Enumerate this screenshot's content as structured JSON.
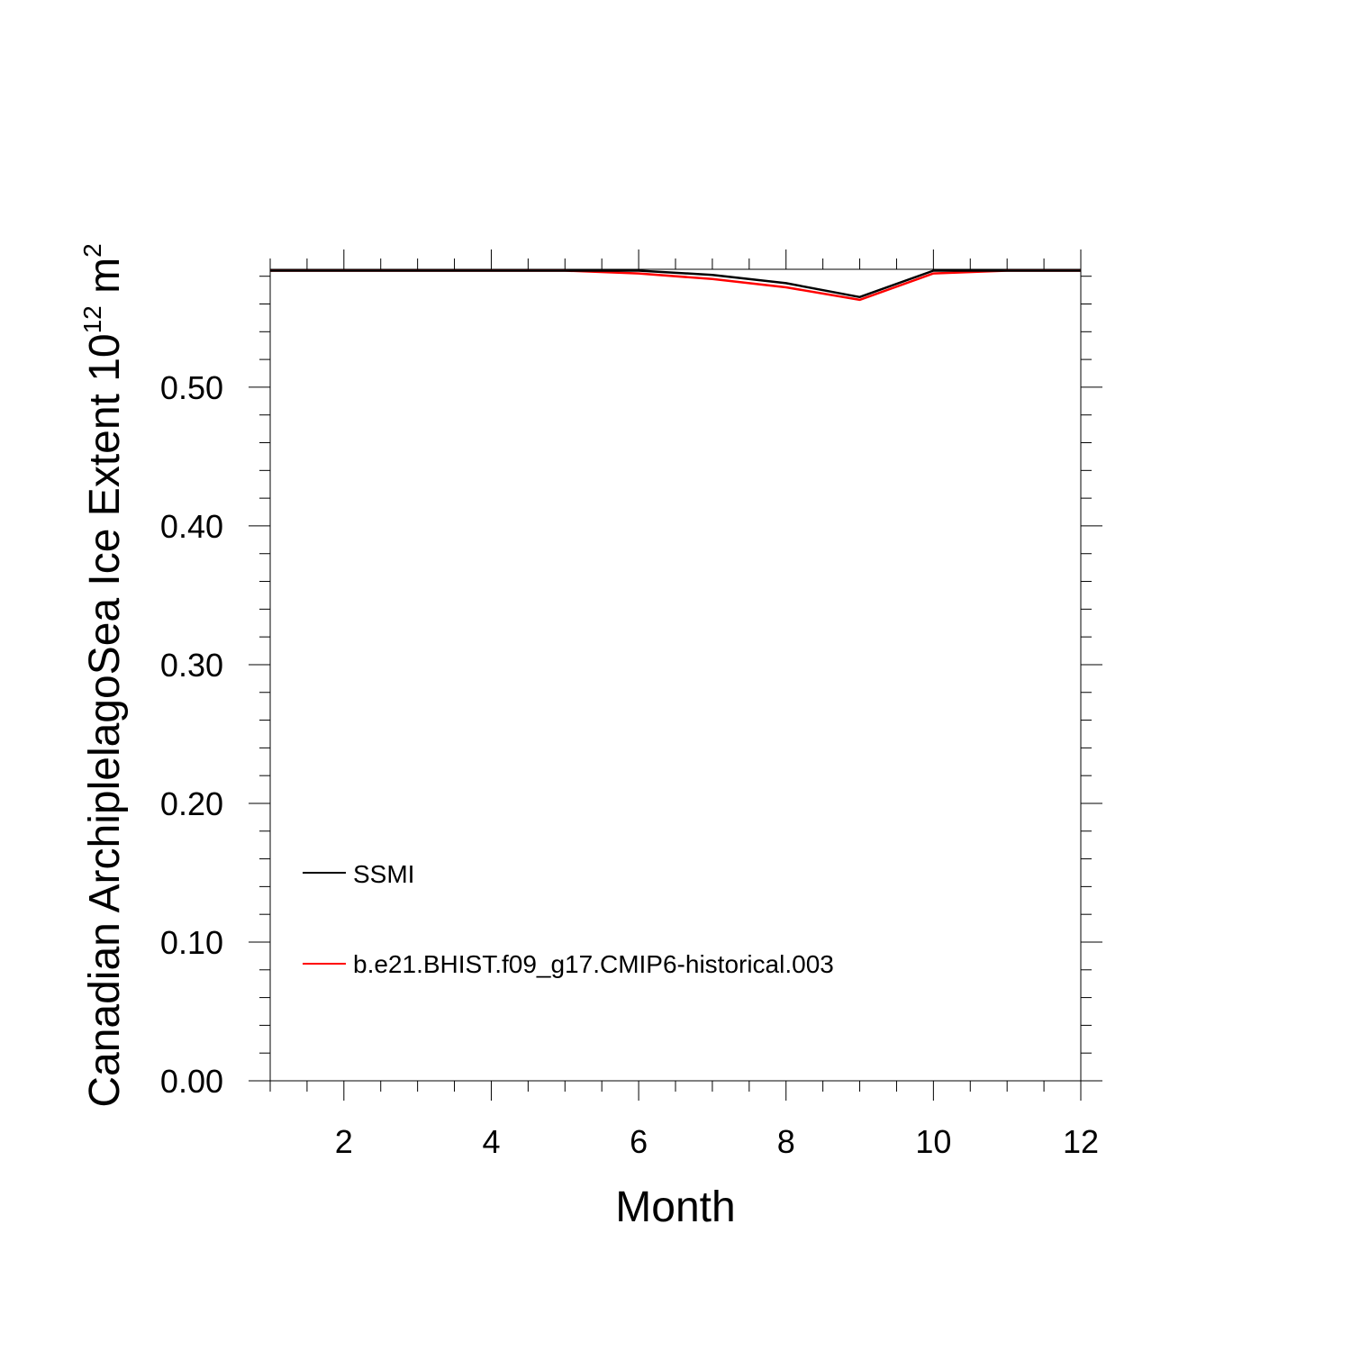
{
  "chart_data": {
    "type": "line",
    "xlabel": "Month",
    "ylabel": {
      "text": "Canadian ArchiplelagoSea Ice Extent 10",
      "exponent": "12",
      "unit": " m",
      "unit_exponent": "2"
    },
    "xlim": [
      1,
      12
    ],
    "ylim": [
      0,
      0.585
    ],
    "x_ticks": [
      2,
      4,
      6,
      8,
      10,
      12
    ],
    "x_tick_labels": [
      "2",
      "4",
      "6",
      "8",
      "10",
      "12"
    ],
    "y_ticks": [
      0,
      0.1,
      0.2,
      0.3,
      0.4,
      0.5
    ],
    "y_tick_labels": [
      "0.00",
      "0.10",
      "0.20",
      "0.30",
      "0.40",
      "0.50"
    ],
    "grid": false,
    "legend_position": "bottom-left",
    "x": [
      1,
      2,
      3,
      4,
      5,
      6,
      7,
      8,
      9,
      10,
      11,
      12
    ],
    "series": [
      {
        "name": "SSMI",
        "color": "#000000",
        "values": [
          0.584,
          0.584,
          0.584,
          0.584,
          0.584,
          0.584,
          0.581,
          0.575,
          0.565,
          0.584,
          0.584,
          0.584
        ]
      },
      {
        "name": "b.e21.BHIST.f09_g17.CMIP6-historical.003",
        "color": "#ff0000",
        "values": [
          0.584,
          0.584,
          0.584,
          0.584,
          0.584,
          0.582,
          0.578,
          0.572,
          0.563,
          0.582,
          0.584,
          0.584
        ]
      }
    ]
  }
}
